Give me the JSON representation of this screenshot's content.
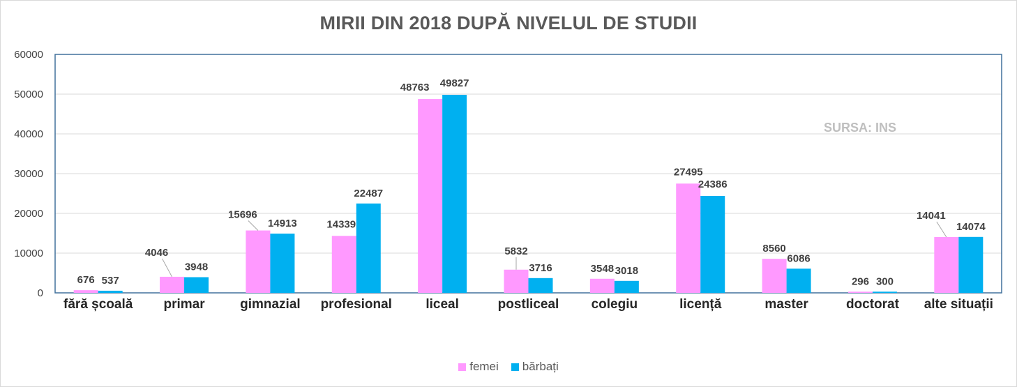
{
  "chart_data": {
    "type": "bar",
    "title": "MIRII DIN 2018 DUPĂ NIVELUL DE STUDII",
    "annotation": "SURSA: INS",
    "categories": [
      "fără școală",
      "primar",
      "gimnazial",
      "profesional",
      "liceal",
      "postliceal",
      "colegiu",
      "licență",
      "master",
      "doctorat",
      "alte situații"
    ],
    "series": [
      {
        "name": "femei",
        "color": "#ff99ff",
        "values": [
          676,
          4046,
          15696,
          14339,
          48763,
          5832,
          3548,
          27495,
          8560,
          296,
          14041
        ]
      },
      {
        "name": "bărbați",
        "color": "#00b0f0",
        "values": [
          537,
          3948,
          14913,
          22487,
          49827,
          3716,
          3018,
          24386,
          6086,
          300,
          14074
        ]
      }
    ],
    "ylim": [
      0,
      60000
    ],
    "yticks": [
      0,
      10000,
      20000,
      30000,
      40000,
      50000,
      60000
    ],
    "grid": true,
    "legend_position": "bottom",
    "xlabel": "",
    "ylabel": ""
  }
}
